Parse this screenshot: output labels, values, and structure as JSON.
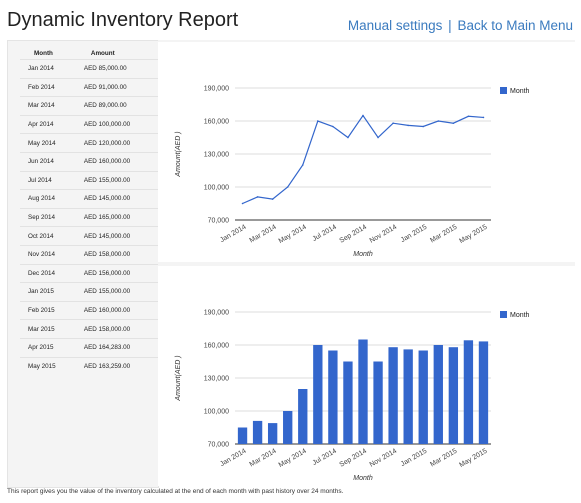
{
  "header": {
    "title": "Dynamic Inventory Report",
    "manual_settings_link": "Manual settings",
    "separator": "|",
    "back_link": "Back to Main Menu"
  },
  "table": {
    "headers": [
      "Month",
      "Amount"
    ],
    "rows": [
      [
        "Jan 2014",
        "AED 85,000.00"
      ],
      [
        "Feb 2014",
        "AED 91,000.00"
      ],
      [
        "Mar 2014",
        "AED 89,000.00"
      ],
      [
        "Apr 2014",
        "AED 100,000.00"
      ],
      [
        "May 2014",
        "AED 120,000.00"
      ],
      [
        "Jun 2014",
        "AED 160,000.00"
      ],
      [
        "Jul 2014",
        "AED 155,000.00"
      ],
      [
        "Aug 2014",
        "AED 145,000.00"
      ],
      [
        "Sep 2014",
        "AED 165,000.00"
      ],
      [
        "Oct 2014",
        "AED 145,000.00"
      ],
      [
        "Nov 2014",
        "AED 158,000.00"
      ],
      [
        "Dec 2014",
        "AED 156,000.00"
      ],
      [
        "Jan 2015",
        "AED 155,000.00"
      ],
      [
        "Feb 2015",
        "AED 160,000.00"
      ],
      [
        "Mar 2015",
        "AED 158,000.00"
      ],
      [
        "Apr 2015",
        "AED 164,283.00"
      ],
      [
        "May 2015",
        "AED 163,259.00"
      ]
    ]
  },
  "footer": {
    "text": "This report gives you the value of the inventory calculated at the end of each month with past history over 24 months."
  },
  "colors": {
    "link": "#3b7bbf",
    "series": "#3366cc"
  },
  "chart_data": [
    {
      "type": "line",
      "x": [
        "Jan 2014",
        "Feb 2014",
        "Mar 2014",
        "Apr 2014",
        "May 2014",
        "Jun 2014",
        "Jul 2014",
        "Aug 2014",
        "Sep 2014",
        "Oct 2014",
        "Nov 2014",
        "Dec 2014",
        "Jan 2015",
        "Feb 2015",
        "Mar 2015",
        "Apr 2015",
        "May 2015"
      ],
      "series": [
        {
          "name": "Month",
          "values": [
            85000,
            91000,
            89000,
            100000,
            120000,
            160000,
            155000,
            145000,
            165000,
            145000,
            158000,
            156000,
            155000,
            160000,
            158000,
            164283,
            163259
          ]
        }
      ],
      "xticks": [
        "Jan 2014",
        "Mar 2014",
        "May 2014",
        "Jul 2014",
        "Sep 2014",
        "Nov 2014",
        "Jan 2015",
        "Mar 2015",
        "May 2015"
      ],
      "yticks": [
        "70,000",
        "100,000",
        "130,000",
        "160,000",
        "190,000"
      ],
      "ytick_values": [
        70000,
        100000,
        130000,
        160000,
        190000
      ],
      "ylim": [
        70000,
        190000
      ],
      "xlabel": "Month",
      "ylabel": "Amount(AED )",
      "legend_position": "right",
      "grid": true
    },
    {
      "type": "bar",
      "categories": [
        "Jan 2014",
        "Feb 2014",
        "Mar 2014",
        "Apr 2014",
        "May 2014",
        "Jun 2014",
        "Jul 2014",
        "Aug 2014",
        "Sep 2014",
        "Oct 2014",
        "Nov 2014",
        "Dec 2014",
        "Jan 2015",
        "Feb 2015",
        "Mar 2015",
        "Apr 2015",
        "May 2015"
      ],
      "series": [
        {
          "name": "Month",
          "values": [
            85000,
            91000,
            89000,
            100000,
            120000,
            160000,
            155000,
            145000,
            165000,
            145000,
            158000,
            156000,
            155000,
            160000,
            158000,
            164283,
            163259
          ]
        }
      ],
      "xticks": [
        "Jan 2014",
        "Mar 2014",
        "May 2014",
        "Jul 2014",
        "Sep 2014",
        "Nov 2014",
        "Jan 2015",
        "Mar 2015",
        "May 2015"
      ],
      "yticks": [
        "70,000",
        "100,000",
        "130,000",
        "160,000",
        "190,000"
      ],
      "ytick_values": [
        70000,
        100000,
        130000,
        160000,
        190000
      ],
      "ylim": [
        70000,
        190000
      ],
      "xlabel": "Month",
      "ylabel": "Amount(AED )",
      "legend_position": "right",
      "grid": true
    }
  ]
}
